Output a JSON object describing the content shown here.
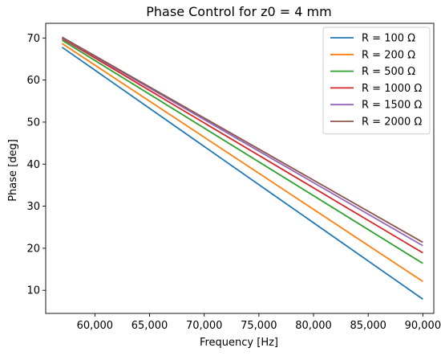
{
  "chart_data": {
    "type": "line",
    "title": "Phase Control for z0 = 4 mm",
    "xlabel": "Frequency [Hz]",
    "ylabel": "Phase [deg]",
    "xlim": [
      55500,
      91000
    ],
    "ylim": [
      4.5,
      73.5
    ],
    "xticks": [
      60000,
      65000,
      70000,
      75000,
      80000,
      85000,
      90000
    ],
    "xtick_labels": [
      "60,000",
      "65,000",
      "70,000",
      "75,000",
      "80,000",
      "85,000",
      "90,000"
    ],
    "yticks": [
      10,
      20,
      30,
      40,
      50,
      60,
      70
    ],
    "ytick_labels": [
      "10",
      "20",
      "30",
      "40",
      "50",
      "60",
      "70"
    ],
    "grid": false,
    "legend_position": "top-right",
    "x": [
      57000,
      90000
    ],
    "series": [
      {
        "name": "R = 100 Ω",
        "color": "#1f77b4",
        "values": [
          67.8,
          7.9
        ]
      },
      {
        "name": "R = 200 Ω",
        "color": "#ff7f0e",
        "values": [
          68.7,
          12.1
        ]
      },
      {
        "name": "R = 500 Ω",
        "color": "#2ca02c",
        "values": [
          69.5,
          16.4
        ]
      },
      {
        "name": "R = 1000 Ω",
        "color": "#d62728",
        "values": [
          69.9,
          18.9
        ]
      },
      {
        "name": "R = 1500 Ω",
        "color": "#9467bd",
        "values": [
          70.1,
          20.6
        ]
      },
      {
        "name": "R = 2000 Ω",
        "color": "#8c564b",
        "values": [
          70.2,
          21.4
        ]
      }
    ]
  }
}
